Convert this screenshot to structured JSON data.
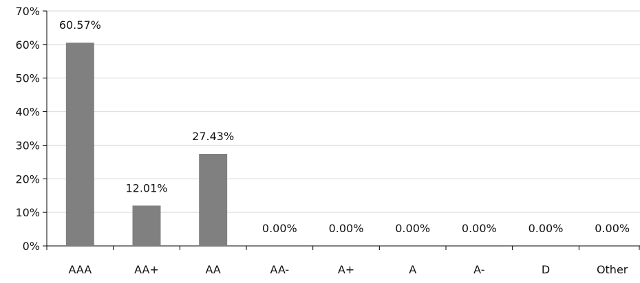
{
  "chart_data": {
    "type": "bar",
    "title": "",
    "xlabel": "",
    "ylabel": "",
    "categories": [
      "AAA",
      "AA+",
      "AA",
      "AA-",
      "A+",
      "A",
      "A-",
      "D",
      "Other"
    ],
    "values": [
      60.57,
      12.01,
      27.43,
      0.0,
      0.0,
      0.0,
      0.0,
      0.0,
      0.0
    ],
    "data_labels": [
      "60.57%",
      "12.01%",
      "27.43%",
      "0.00%",
      "0.00%",
      "0.00%",
      "0.00%",
      "0.00%",
      "0.00%"
    ],
    "ylim": [
      0,
      70
    ],
    "y_ticks": [
      0,
      10,
      20,
      30,
      40,
      50,
      60,
      70
    ],
    "y_tick_labels": [
      "0%",
      "10%",
      "20%",
      "30%",
      "40%",
      "50%",
      "60%",
      "70%"
    ],
    "grid": true,
    "legend": "none",
    "bar_color": "#808080",
    "grid_color": "#d9d9d9",
    "axis_color": "#000000"
  }
}
